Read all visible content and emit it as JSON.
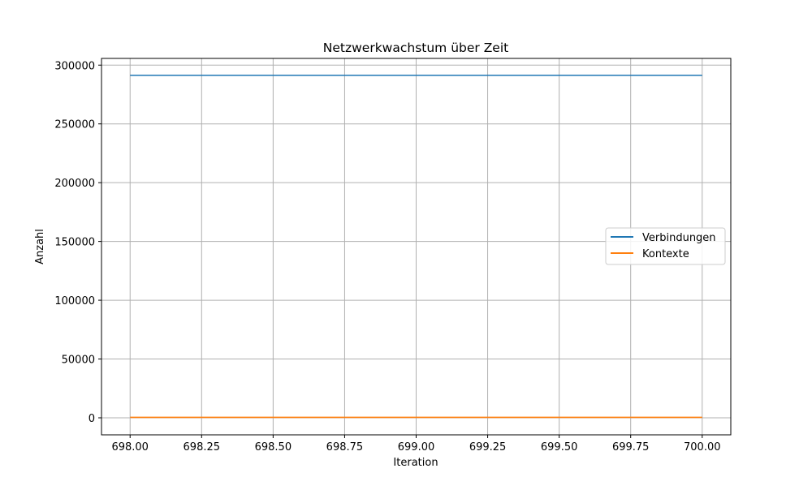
{
  "chart_data": {
    "type": "line",
    "title": "Netzwerkwachstum über Zeit",
    "xlabel": "Iteration",
    "ylabel": "Anzahl",
    "x": [
      698,
      699,
      700
    ],
    "series": [
      {
        "name": "Verbindungen",
        "values": [
          291300,
          291300,
          291300
        ],
        "color": "#1f77b4"
      },
      {
        "name": "Kontexte",
        "values": [
          400,
          400,
          400
        ],
        "color": "#ff7f0e"
      }
    ],
    "xlim": [
      697.9,
      700.1
    ],
    "ylim": [
      -14500,
      305700
    ],
    "xticks": [
      {
        "value": 698.0,
        "label": "698.00"
      },
      {
        "value": 698.25,
        "label": "698.25"
      },
      {
        "value": 698.5,
        "label": "698.50"
      },
      {
        "value": 698.75,
        "label": "698.75"
      },
      {
        "value": 699.0,
        "label": "699.00"
      },
      {
        "value": 699.25,
        "label": "699.25"
      },
      {
        "value": 699.5,
        "label": "699.50"
      },
      {
        "value": 699.75,
        "label": "699.75"
      },
      {
        "value": 700.0,
        "label": "700.00"
      }
    ],
    "yticks": [
      {
        "value": 0,
        "label": "0"
      },
      {
        "value": 50000,
        "label": "50000"
      },
      {
        "value": 100000,
        "label": "100000"
      },
      {
        "value": 150000,
        "label": "150000"
      },
      {
        "value": 200000,
        "label": "200000"
      },
      {
        "value": 250000,
        "label": "250000"
      },
      {
        "value": 300000,
        "label": "300000"
      }
    ],
    "grid": true,
    "legend_position": "center-right"
  }
}
